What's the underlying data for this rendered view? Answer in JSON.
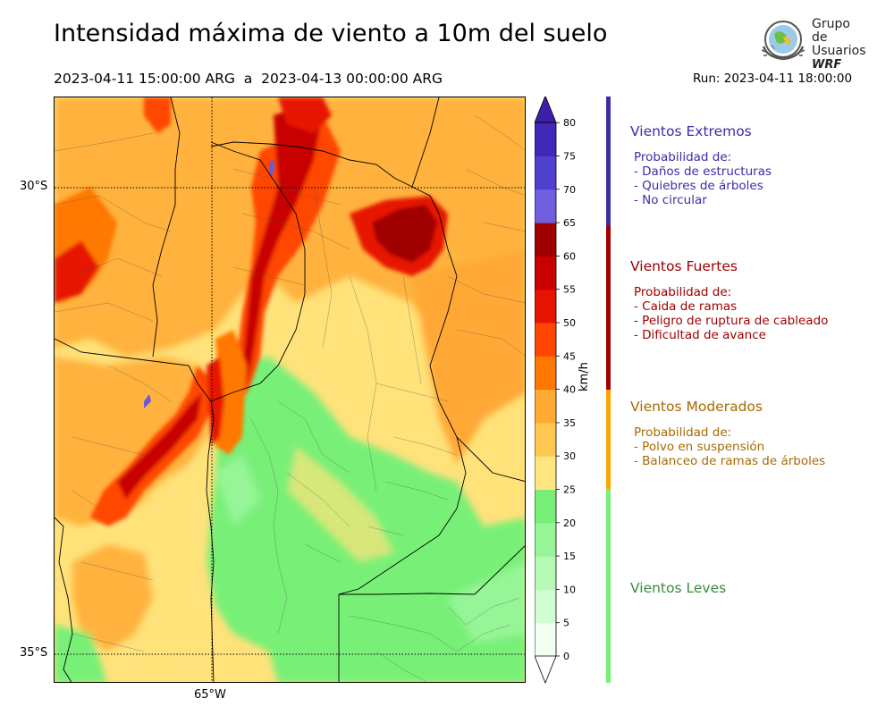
{
  "header": {
    "title": "Intensidad máxima de viento a 10m del suelo",
    "period": "2023-04-11 15:00:00 ARG  a  2023-04-13 00:00:00 ARG",
    "run": "Run: 2023-04-11 18:00:00"
  },
  "logo": {
    "line1": "Grupo de",
    "line2": "Usuarios",
    "brand": "WRF"
  },
  "map": {
    "lat_labels": [
      "30°S",
      "35°S"
    ],
    "lon_labels": [
      "65°W"
    ]
  },
  "colorbar": {
    "unit": "km/h",
    "ticks": [
      "0",
      "5",
      "10",
      "15",
      "20",
      "25",
      "30",
      "35",
      "40",
      "45",
      "50",
      "55",
      "60",
      "65",
      "70",
      "75",
      "80"
    ],
    "colors": [
      "#f0fff0",
      "#d2fcd2",
      "#b4f9b4",
      "#96f596",
      "#78f078",
      "#ffe680",
      "#ffc850",
      "#ffaa32",
      "#ff7800",
      "#ff4600",
      "#e61400",
      "#c80000",
      "#a00000",
      "#7060e0",
      "#5040d0",
      "#4028b8"
    ],
    "extend_max_color": "#3c1eaa"
  },
  "categories": [
    {
      "title": "Vientos Extremos",
      "color": "#3a2ea8",
      "bar_color": "#3a2ea8",
      "lines": [
        "Probabilidad de:",
        "- Daños de estructuras",
        "- Quiebres de árboles",
        "- No circular"
      ]
    },
    {
      "title": "Vientos Fuertes",
      "color": "#a00000",
      "bar_color": "#a00000",
      "lines": [
        "Probabilidad de:",
        "- Caida de ramas",
        "- Peligro de ruptura de cableado",
        "- Dificultad de avance"
      ]
    },
    {
      "title": "Vientos Moderados",
      "color": "#a86a00",
      "bar_color": "#ffa500",
      "lines": [
        "Probabilidad de:",
        "- Polvo en suspensión",
        "- Balanceo de ramas de árboles"
      ]
    },
    {
      "title": "Vientos Leves",
      "color": "#3a8a3a",
      "bar_color": "#78f078",
      "lines": []
    }
  ]
}
